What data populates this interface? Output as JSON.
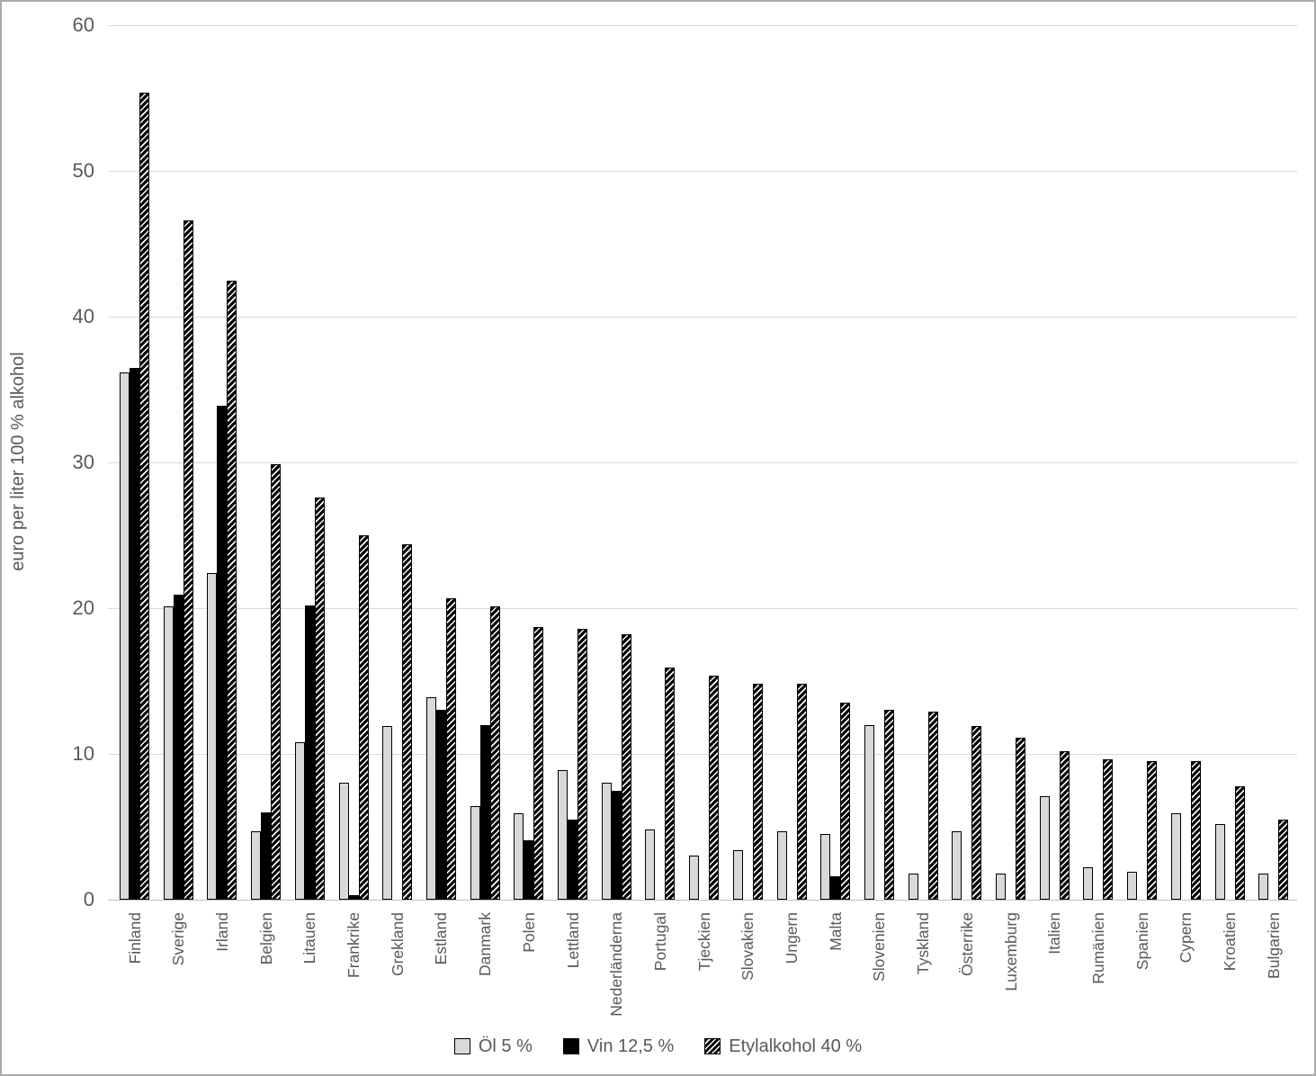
{
  "chart_data": {
    "type": "bar",
    "title": "",
    "xlabel": "",
    "ylabel": "euro per liter 100 % alkohol",
    "ylim": [
      0,
      60
    ],
    "yticks": [
      0,
      10,
      20,
      30,
      40,
      50,
      60
    ],
    "grid": true,
    "legend_position": "bottom",
    "categories": [
      "Finland",
      "Sverige",
      "Irland",
      "Belgien",
      "Litauen",
      "Frankrike",
      "Grekland",
      "Estland",
      "Danmark",
      "Polen",
      "Lettland",
      "Nederländerna",
      "Portugal",
      "Tjeckien",
      "Slovakien",
      "Ungern",
      "Malta",
      "Slovenien",
      "Tyskland",
      "Österrike",
      "Luxemburg",
      "Italien",
      "Rumänien",
      "Spanien",
      "Cypern",
      "Kroatien",
      "Bulgarien"
    ],
    "series": [
      {
        "key": "ol",
        "name": "Öl 5 %",
        "values": [
          36.2,
          20.1,
          22.4,
          4.7,
          10.8,
          8.0,
          11.9,
          13.9,
          6.4,
          5.9,
          8.9,
          8.0,
          4.8,
          3.0,
          3.4,
          4.7,
          4.5,
          12.0,
          1.8,
          4.7,
          1.8,
          7.1,
          2.2,
          1.9,
          5.9,
          5.2,
          1.8
        ]
      },
      {
        "key": "vin",
        "name": "Vin 12,5 %",
        "values": [
          36.5,
          20.9,
          33.9,
          6.0,
          20.2,
          0.3,
          0,
          13.0,
          12.0,
          4.1,
          5.5,
          7.5,
          0,
          0,
          0,
          0,
          1.6,
          0,
          0,
          0,
          0,
          0,
          0,
          0,
          0,
          0,
          0
        ]
      },
      {
        "key": "etyl",
        "name": "Etylalkohol 40 %",
        "values": [
          55.4,
          46.6,
          42.5,
          29.9,
          27.6,
          25.0,
          24.4,
          20.7,
          20.1,
          18.7,
          18.6,
          18.2,
          15.9,
          15.4,
          14.8,
          14.8,
          13.5,
          13.0,
          12.9,
          11.9,
          11.1,
          10.2,
          9.6,
          9.5,
          9.5,
          7.8,
          5.5
        ]
      }
    ]
  },
  "colors": {
    "background": "#ffffff",
    "page_border": "#ababab",
    "axis_text": "#595959",
    "gridline": "#d9d9d9",
    "baseline": "#bfbfbf",
    "bar_ol_fill": "#d9d9d9",
    "bar_vin_fill": "#000000",
    "bar_etyl_pattern": "diagonal-hatch",
    "bar_border": "#000000"
  }
}
